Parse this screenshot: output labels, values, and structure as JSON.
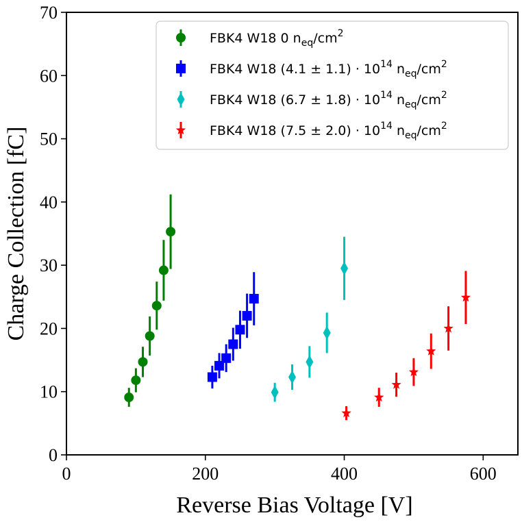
{
  "chart_data": {
    "type": "scatter",
    "xlabel": "Reverse Bias Voltage [V]",
    "ylabel": "Charge Collection [fC]",
    "xlim": [
      0,
      650
    ],
    "ylim": [
      0,
      70
    ],
    "x_ticks": [
      "0",
      "200",
      "400",
      "600"
    ],
    "y_ticks": [
      "0",
      "10",
      "20",
      "30",
      "40",
      "50",
      "60",
      "70"
    ],
    "grid": false,
    "legend_position": "top-right",
    "series": [
      {
        "name": "FBK4 W18 0 n_eq/cm^2",
        "legend": {
          "main": "FBK4 W18 0 n",
          "sub": "eq",
          "unit": "/cm",
          "sup": "2",
          "rest": ""
        },
        "color": "#008000",
        "marker": "circle",
        "points": [
          {
            "x": 90,
            "y": 9.1,
            "err": 1.5
          },
          {
            "x": 100,
            "y": 11.8,
            "err": 1.9
          },
          {
            "x": 110,
            "y": 14.7,
            "err": 2.4
          },
          {
            "x": 120,
            "y": 18.8,
            "err": 3.1
          },
          {
            "x": 130,
            "y": 23.6,
            "err": 3.8
          },
          {
            "x": 140,
            "y": 29.2,
            "err": 4.8
          },
          {
            "x": 150,
            "y": 35.3,
            "err": 5.9
          }
        ]
      },
      {
        "name": "FBK4 W18 (4.1 ± 1.1) · 10^14 n_eq/cm^2",
        "legend": {
          "main": "FBK4 W18 (4.1 ± 1.1) · 10",
          "sup1": "14",
          "mid": " n",
          "sub": "eq",
          "unit": "/cm",
          "sup": "2"
        },
        "color": "#0000ff",
        "marker": "square",
        "points": [
          {
            "x": 210,
            "y": 12.3,
            "err": 1.8
          },
          {
            "x": 220,
            "y": 14.1,
            "err": 2.0
          },
          {
            "x": 230,
            "y": 15.3,
            "err": 2.2
          },
          {
            "x": 240,
            "y": 17.5,
            "err": 2.6
          },
          {
            "x": 250,
            "y": 19.8,
            "err": 3.0
          },
          {
            "x": 260,
            "y": 22.0,
            "err": 3.5
          },
          {
            "x": 270,
            "y": 24.7,
            "err": 4.2
          }
        ]
      },
      {
        "name": "FBK4 W18 (6.7 ± 1.8) · 10^14 n_eq/cm^2",
        "legend": {
          "main": "FBK4 W18 (6.7 ± 1.8) · 10",
          "sup1": "14",
          "mid": " n",
          "sub": "eq",
          "unit": "/cm",
          "sup": "2"
        },
        "color": "#00bfbf",
        "marker": "diamond",
        "points": [
          {
            "x": 300,
            "y": 9.9,
            "err": 1.5
          },
          {
            "x": 325,
            "y": 12.3,
            "err": 2.0
          },
          {
            "x": 350,
            "y": 14.7,
            "err": 2.5
          },
          {
            "x": 375,
            "y": 19.3,
            "err": 3.2
          },
          {
            "x": 400,
            "y": 29.5,
            "err": 5.0
          }
        ]
      },
      {
        "name": "FBK4 W18 (7.5 ± 2.0) · 10^14 n_eq/cm^2",
        "legend": {
          "main": "FBK4 W18 (7.5 ± 2.0) · 10",
          "sup1": "14",
          "mid": " n",
          "sub": "eq",
          "unit": "/cm",
          "sup": "2"
        },
        "color": "#ff0000",
        "marker": "star",
        "points": [
          {
            "x": 403,
            "y": 6.6,
            "err": 1.1
          },
          {
            "x": 450,
            "y": 9.1,
            "err": 1.5
          },
          {
            "x": 475,
            "y": 11.1,
            "err": 1.9
          },
          {
            "x": 500,
            "y": 13.1,
            "err": 2.2
          },
          {
            "x": 525,
            "y": 16.4,
            "err": 2.8
          },
          {
            "x": 550,
            "y": 20.0,
            "err": 3.5
          },
          {
            "x": 575,
            "y": 24.9,
            "err": 4.2
          }
        ]
      }
    ]
  }
}
